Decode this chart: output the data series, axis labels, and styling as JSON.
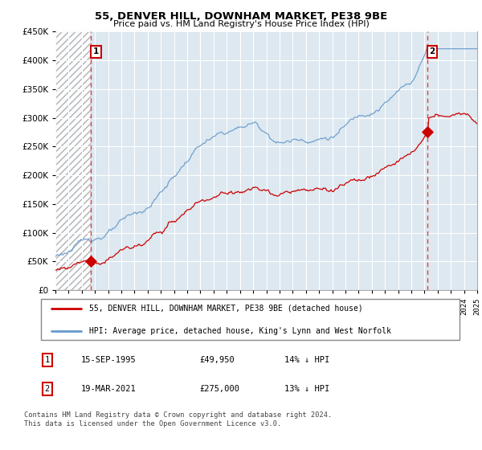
{
  "title": "55, DENVER HILL, DOWNHAM MARKET, PE38 9BE",
  "subtitle": "Price paid vs. HM Land Registry's House Price Index (HPI)",
  "legend_line1": "55, DENVER HILL, DOWNHAM MARKET, PE38 9BE (detached house)",
  "legend_line2": "HPI: Average price, detached house, King's Lynn and West Norfolk",
  "annotation1_date": "15-SEP-1995",
  "annotation1_price": "£49,950",
  "annotation1_hpi": "14% ↓ HPI",
  "annotation2_date": "19-MAR-2021",
  "annotation2_price": "£275,000",
  "annotation2_hpi": "13% ↓ HPI",
  "footer": "Contains HM Land Registry data © Crown copyright and database right 2024.\nThis data is licensed under the Open Government Licence v3.0.",
  "price_color": "#cc0000",
  "hpi_color": "#6699cc",
  "dashed_line_color": "#dd4444",
  "plot_bg_color": "#dde8f0",
  "grid_color": "#ffffff",
  "ylim": [
    0,
    450000
  ],
  "yticks": [
    0,
    50000,
    100000,
    150000,
    200000,
    250000,
    300000,
    350000,
    400000,
    450000
  ],
  "sale1_x": 1995.71,
  "sale1_y": 49950,
  "sale2_x": 2021.21,
  "sale2_y": 275000,
  "xmin": 1993,
  "xmax": 2025,
  "n_months": 385
}
